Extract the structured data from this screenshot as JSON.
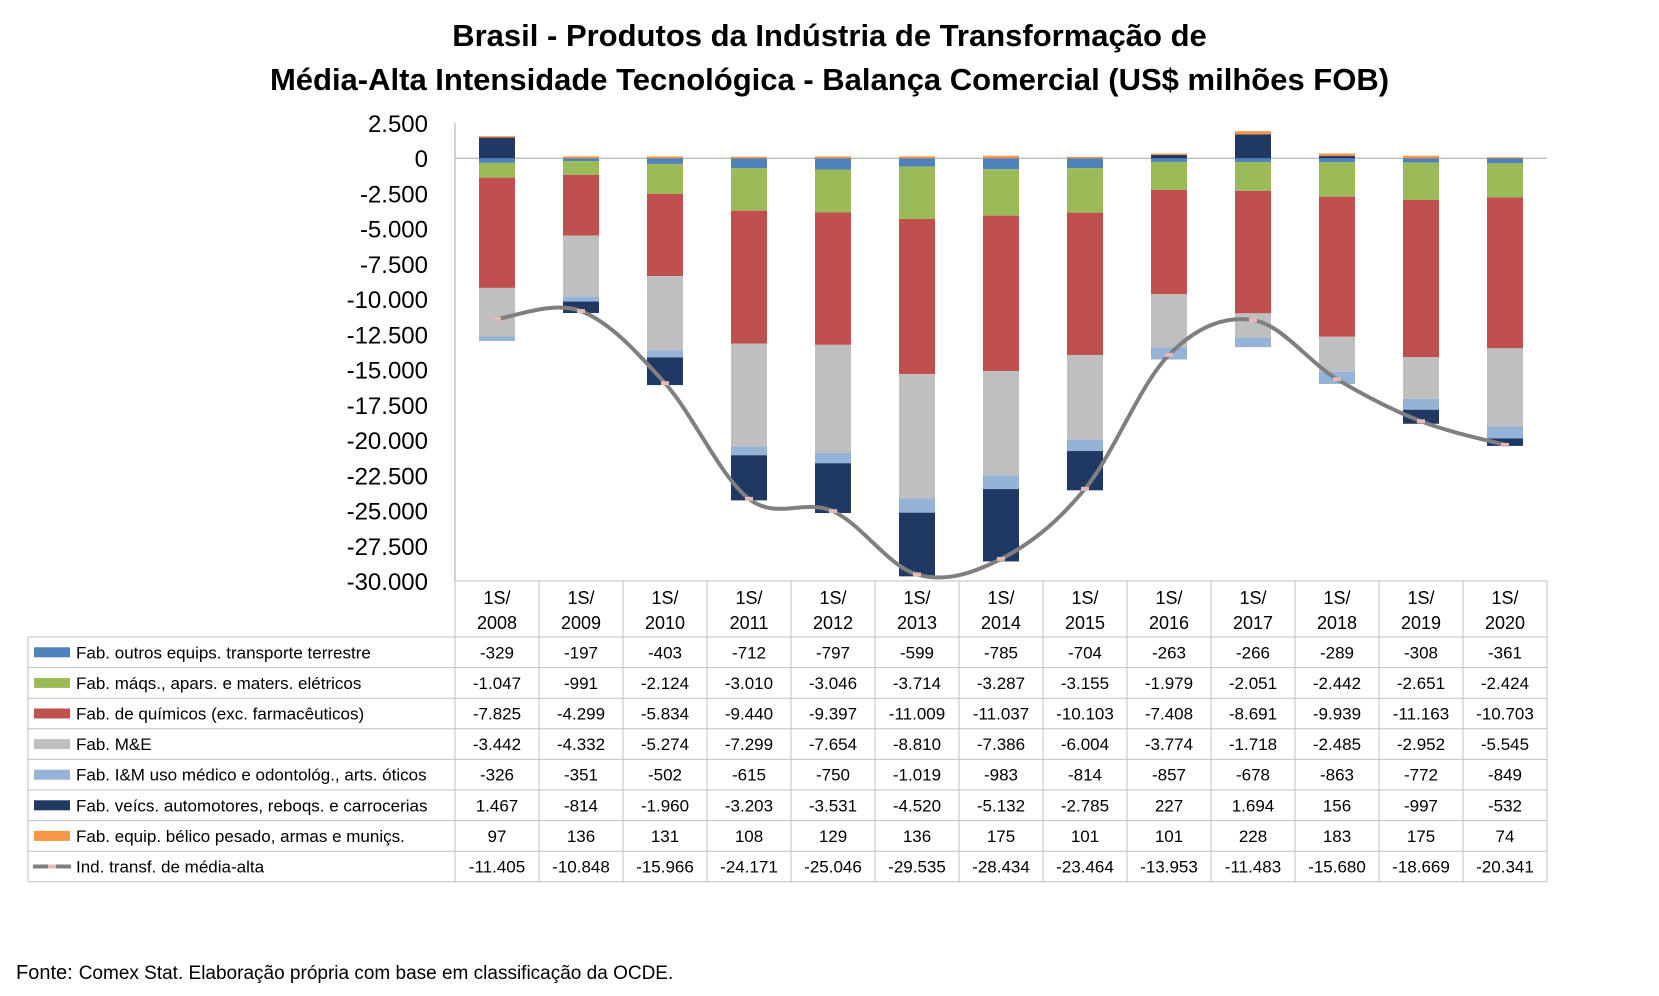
{
  "title_line1": "Brasil - Produtos da Indústria de Transformação de",
  "title_line2": "Média-Alta Intensidade Tecnológica - Balança Comercial (US$ milhões FOB)",
  "source_label": "Fonte:",
  "source_text": "Comex Stat. Elaboração própria com base em classificação da OCDE.",
  "chart_data": {
    "type": "bar",
    "stacked": true,
    "categories": [
      [
        "1S/",
        "2008"
      ],
      [
        "1S/",
        "2009"
      ],
      [
        "1S/",
        "2010"
      ],
      [
        "1S/",
        "2011"
      ],
      [
        "1S/",
        "2012"
      ],
      [
        "1S/",
        "2013"
      ],
      [
        "1S/",
        "2014"
      ],
      [
        "1S/",
        "2015"
      ],
      [
        "1S/",
        "2016"
      ],
      [
        "1S/",
        "2017"
      ],
      [
        "1S/",
        "2018"
      ],
      [
        "1S/",
        "2019"
      ],
      [
        "1S/",
        "2020"
      ]
    ],
    "ylim": [
      -30000,
      2500
    ],
    "yticks": [
      2500,
      0,
      -2500,
      -5000,
      -7500,
      -10000,
      -12500,
      -15000,
      -17500,
      -20000,
      -22500,
      -25000,
      -27500,
      -30000
    ],
    "ytick_labels": [
      "2.500",
      "0",
      "-2.500",
      "-5.000",
      "-7.500",
      "-10.000",
      "-12.500",
      "-15.000",
      "-17.500",
      "-20.000",
      "-22.500",
      "-25.000",
      "-27.500",
      "-30.000"
    ],
    "legend": "data-table",
    "series": [
      {
        "name": "Fab. outros equips. transporte terrestre",
        "type": "bar",
        "color": "#4F81BD",
        "values": [
          -329,
          -197,
          -403,
          -712,
          -797,
          -599,
          -785,
          -704,
          -263,
          -266,
          -289,
          -308,
          -361
        ],
        "labels": [
          "-329",
          "-197",
          "-403",
          "-712",
          "-797",
          "-599",
          "-785",
          "-704",
          "-263",
          "-266",
          "-289",
          "-308",
          "-361"
        ]
      },
      {
        "name": "Fab. máqs., apars. e maters. elétricos",
        "type": "bar",
        "color": "#9BBB59",
        "values": [
          -1047,
          -991,
          -2124,
          -3010,
          -3046,
          -3714,
          -3287,
          -3155,
          -1979,
          -2051,
          -2442,
          -2651,
          -2424
        ],
        "labels": [
          "-1.047",
          "-991",
          "-2.124",
          "-3.010",
          "-3.046",
          "-3.714",
          "-3.287",
          "-3.155",
          "-1.979",
          "-2.051",
          "-2.442",
          "-2.651",
          "-2.424"
        ]
      },
      {
        "name": "Fab. de químicos (exc. farmacêuticos)",
        "type": "bar",
        "color": "#C0504D",
        "values": [
          -7825,
          -4299,
          -5834,
          -9440,
          -9397,
          -11009,
          -11037,
          -10103,
          -7408,
          -8691,
          -9939,
          -11163,
          -10703
        ],
        "labels": [
          "-7.825",
          "-4.299",
          "-5.834",
          "-9.440",
          "-9.397",
          "-11.009",
          "-11.037",
          "-10.103",
          "-7.408",
          "-8.691",
          "-9.939",
          "-11.163",
          "-10.703"
        ]
      },
      {
        "name": "Fab. M&E",
        "type": "bar",
        "color": "#BFBFBF",
        "values": [
          -3442,
          -4332,
          -5274,
          -7299,
          -7654,
          -8810,
          -7386,
          -6004,
          -3774,
          -1718,
          -2485,
          -2952,
          -5545
        ],
        "labels": [
          "-3.442",
          "-4.332",
          "-5.274",
          "-7.299",
          "-7.654",
          "-8.810",
          "-7.386",
          "-6.004",
          "-3.774",
          "-1.718",
          "-2.485",
          "-2.952",
          "-5.545"
        ]
      },
      {
        "name": "Fab. I&M uso médico e odontológ., arts. óticos",
        "type": "bar",
        "color": "#95B3D7",
        "values": [
          -326,
          -351,
          -502,
          -615,
          -750,
          -1019,
          -983,
          -814,
          -857,
          -678,
          -863,
          -772,
          -849
        ],
        "labels": [
          "-326",
          "-351",
          "-502",
          "-615",
          "-750",
          "-1.019",
          "-983",
          "-814",
          "-857",
          "-678",
          "-863",
          "-772",
          "-849"
        ]
      },
      {
        "name": "Fab. veícs. automotores, reboqs. e carrocerias",
        "type": "bar",
        "color": "#1F3864",
        "values": [
          1467,
          -814,
          -1960,
          -3203,
          -3531,
          -4520,
          -5132,
          -2785,
          227,
          1694,
          156,
          -997,
          -532
        ],
        "labels": [
          "1.467",
          "-814",
          "-1.960",
          "-3.203",
          "-3.531",
          "-4.520",
          "-5.132",
          "-2.785",
          "227",
          "1.694",
          "156",
          "-997",
          "-532"
        ]
      },
      {
        "name": "Fab. equip. bélico pesado, armas e muniçs.",
        "type": "bar",
        "color": "#F79646",
        "values": [
          97,
          136,
          131,
          108,
          129,
          136,
          175,
          101,
          101,
          228,
          183,
          175,
          74
        ],
        "labels": [
          "97",
          "136",
          "131",
          "108",
          "129",
          "136",
          "175",
          "101",
          "101",
          "228",
          "183",
          "175",
          "74"
        ]
      },
      {
        "name": "Ind. transf. de média-alta",
        "type": "line",
        "color": "#7F7F7F",
        "marker_color": "#E6B9B8",
        "values": [
          -11405,
          -10848,
          -15966,
          -24171,
          -25046,
          -29535,
          -28434,
          -23464,
          -13953,
          -11483,
          -15680,
          -18669,
          -20341
        ],
        "labels": [
          "-11.405",
          "-10.848",
          "-15.966",
          "-24.171",
          "-25.046",
          "-29.535",
          "-28.434",
          "-23.464",
          "-13.953",
          "-11.483",
          "-15.680",
          "-18.669",
          "-20.341"
        ]
      }
    ]
  }
}
